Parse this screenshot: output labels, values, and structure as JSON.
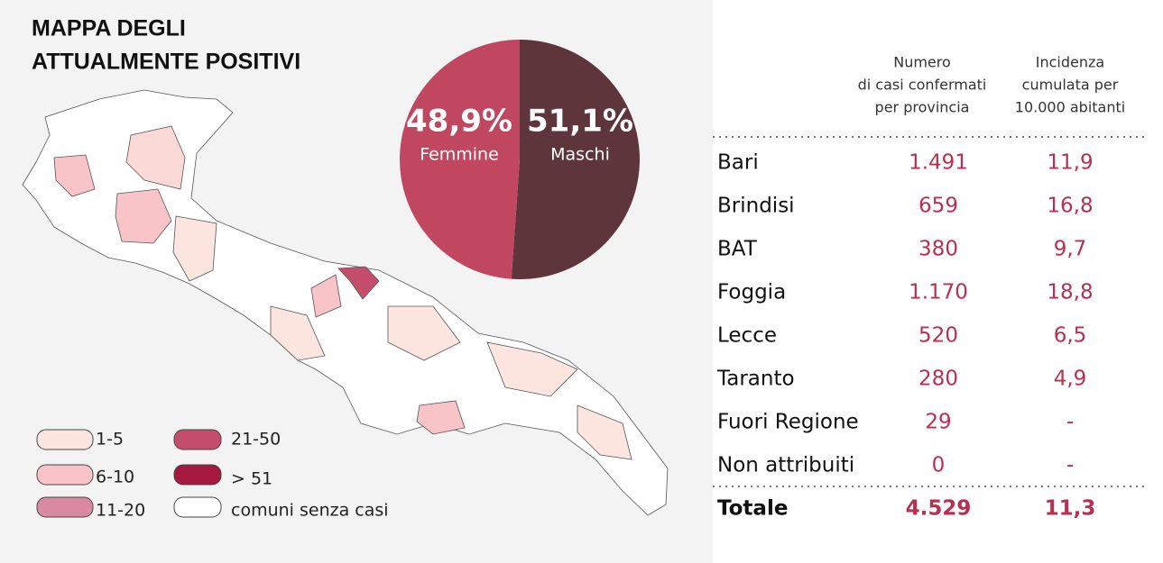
{
  "title": [
    "MAPPA DEGLI",
    "ATTUALMENTE POSITIVI"
  ],
  "map_legend": [
    "1-5",
    "6-10",
    "11-20",
    "21-50",
    "> 51",
    "comuni senza casi"
  ],
  "chart_data": {
    "type": "pie",
    "series": [
      {
        "name": "Femmine",
        "color": "#c0475f",
        "values": [
          48.9
        ],
        "value_labels": [
          "48,9%"
        ]
      },
      {
        "name": "Maschi",
        "color": "#5e353b",
        "values": [
          51.1
        ],
        "value_labels": [
          "51,1%"
        ]
      }
    ]
  },
  "table": {
    "headers": [
      [
        "Numero",
        "di casi confermati",
        "per provincia"
      ],
      [
        "Incidenza",
        "cumulata per",
        "10.000 abitanti"
      ]
    ],
    "rows": [
      [
        "Bari",
        "1.491",
        "11,9"
      ],
      [
        "Brindisi",
        "659",
        "16,8"
      ],
      [
        "BAT",
        "380",
        "9,7"
      ],
      [
        "Foggia",
        "1.170",
        "18,8"
      ],
      [
        "Lecce",
        "520",
        "6,5"
      ],
      [
        "Taranto",
        "280",
        "4,9"
      ],
      [
        "Fuori Regione",
        "29",
        "-"
      ],
      [
        "Non attribuiti",
        "0",
        "-"
      ]
    ],
    "total": [
      "Totale",
      "4.529",
      "11,3"
    ]
  }
}
